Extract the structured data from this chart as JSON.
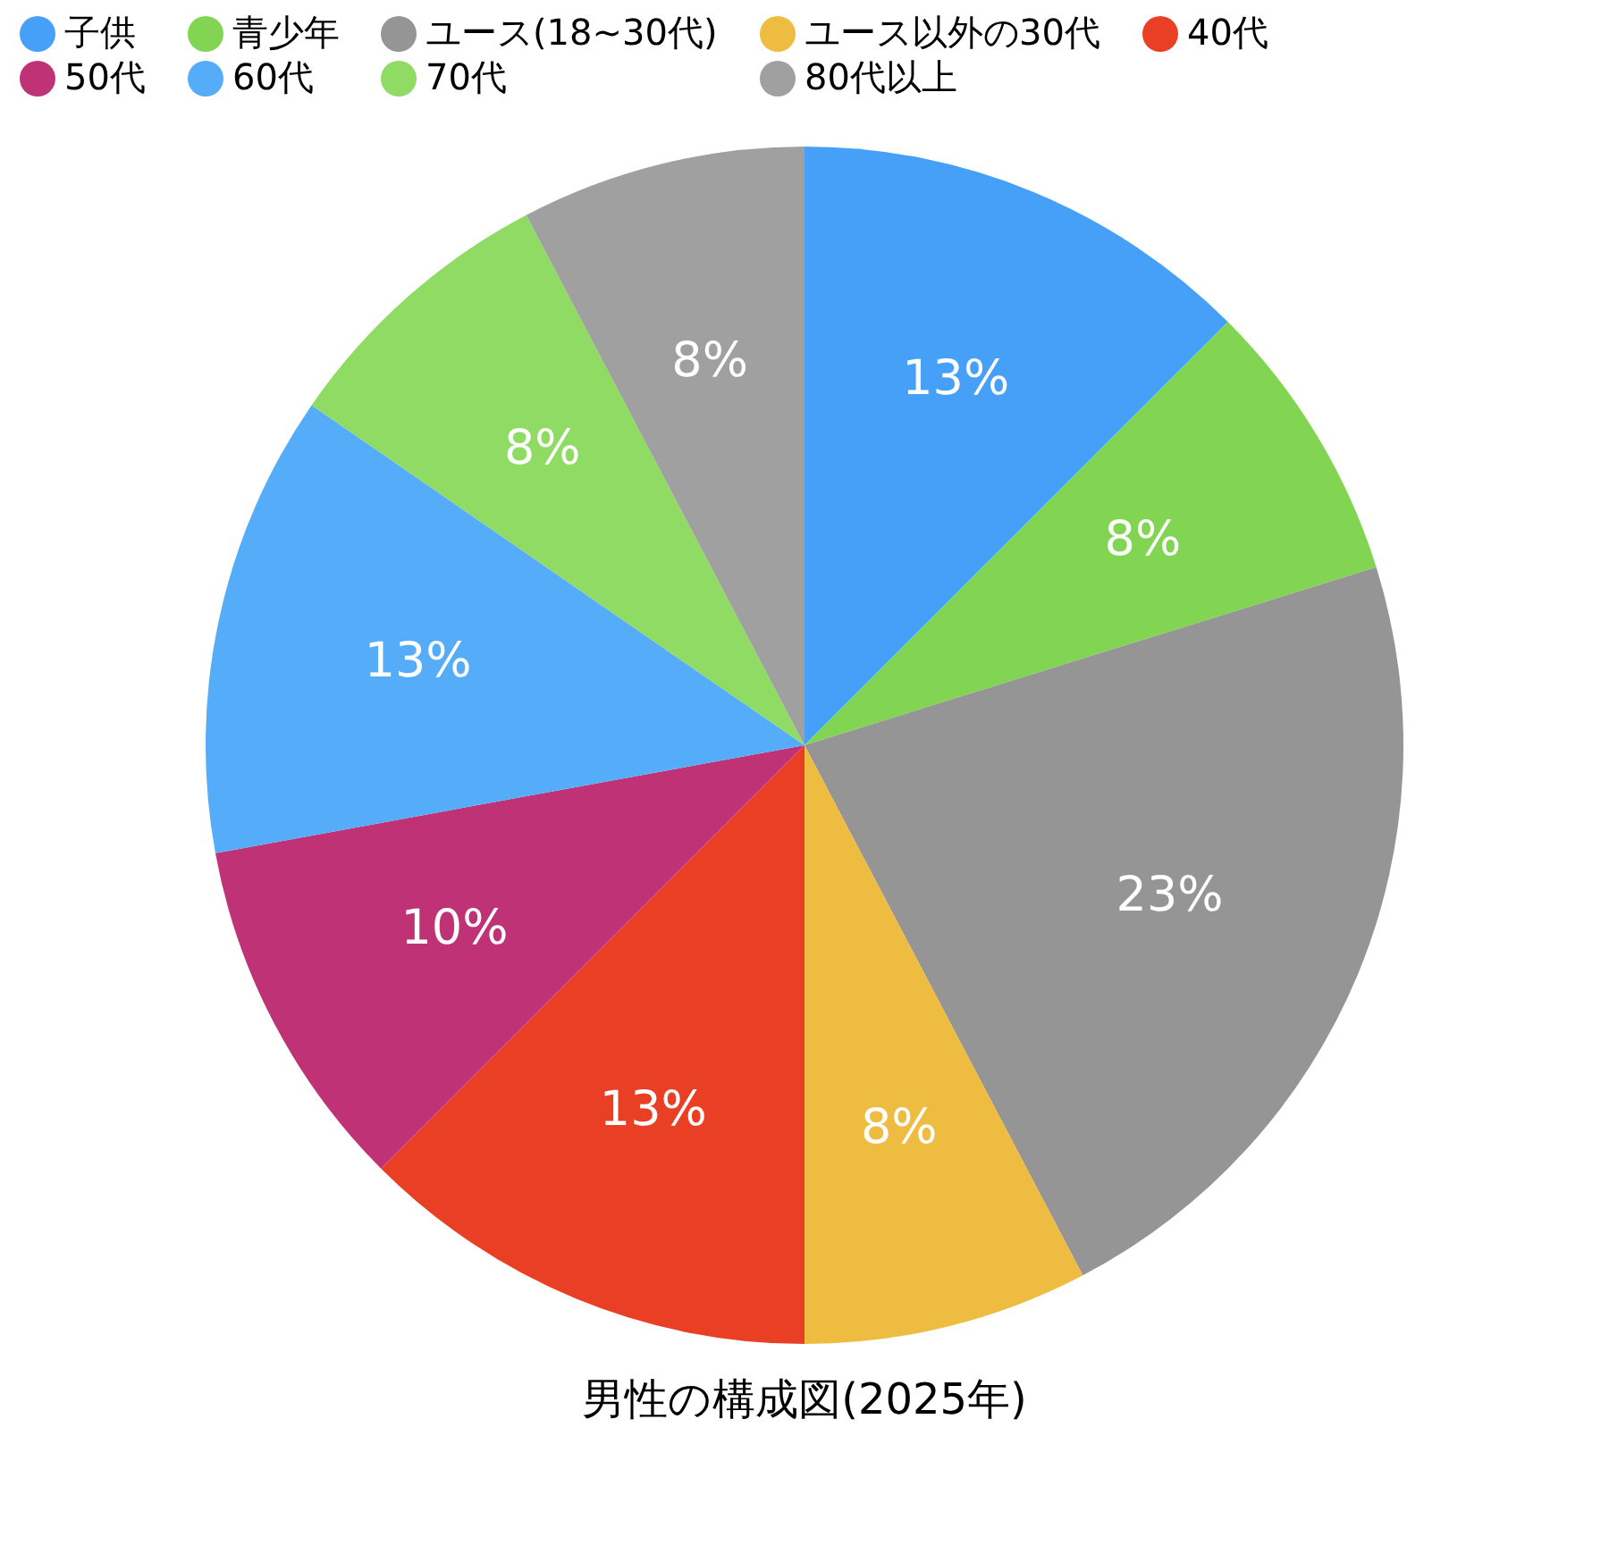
{
  "chart_data": {
    "type": "pie",
    "title": "男性の構成図(2025年)",
    "categories": [
      "子供",
      "青少年",
      "ユース(18~30代)",
      "ユース以外の30代",
      "40代",
      "50代",
      "60代",
      "70代",
      "80代以上"
    ],
    "values": [
      13,
      8,
      23,
      8,
      13,
      10,
      13,
      8,
      8
    ],
    "value_labels": [
      "13%",
      "8%",
      "23%",
      "8%",
      "13%",
      "10%",
      "13%",
      "8%",
      "8%"
    ],
    "colors": [
      "#47a0f8",
      "#82d553",
      "#959595",
      "#efbc42",
      "#e94025",
      "#c03276",
      "#55acf8",
      "#8fdb63",
      "#a0a0a0"
    ],
    "legend": "top"
  }
}
